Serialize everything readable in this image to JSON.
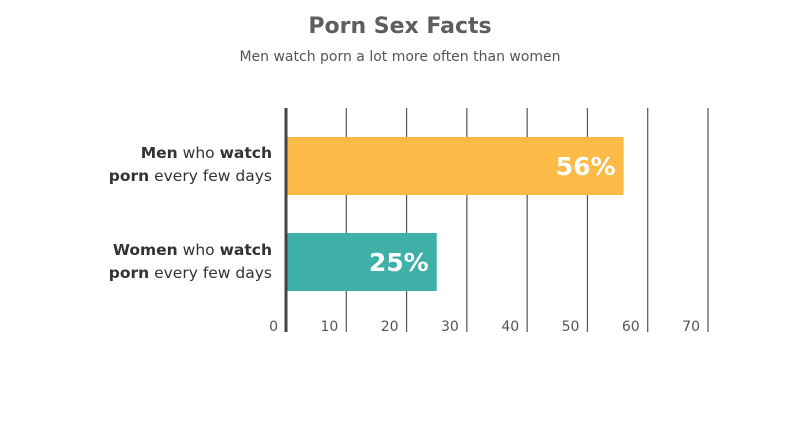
{
  "title": "Porn Sex Facts",
  "subtitle": "Men watch porn a lot more often than women",
  "colors": {
    "men": "#fcbb47",
    "women": "#3fb0a8",
    "grid": "#555555",
    "value_text": "#ffffff"
  },
  "chart_data": {
    "type": "bar",
    "orientation": "horizontal",
    "title": "Porn Sex Facts",
    "subtitle": "Men watch porn a lot more often than women",
    "categories": [
      "Men who watch porn every few days",
      "Women who watch porn every few days"
    ],
    "values": [
      56,
      25
    ],
    "value_labels": [
      "56%",
      "25%"
    ],
    "xlim": [
      0,
      70
    ],
    "xticks": [
      0,
      10,
      20,
      30,
      40,
      50,
      60,
      70
    ],
    "xticklabels": [
      "0",
      "10",
      "20",
      "30",
      "40",
      "50",
      "60",
      "70"
    ],
    "grid": true
  },
  "labels": {
    "men": {
      "line1_bold_a": "Men",
      "line1_rest": " who ",
      "line1_bold_b": "watch",
      "line2_bold": "porn",
      "line2_rest": " every few days"
    },
    "women": {
      "line1_bold_a": "Women",
      "line1_rest": " who ",
      "line1_bold_b": "watch",
      "line2_bold": "porn",
      "line2_rest": " every few days"
    }
  }
}
